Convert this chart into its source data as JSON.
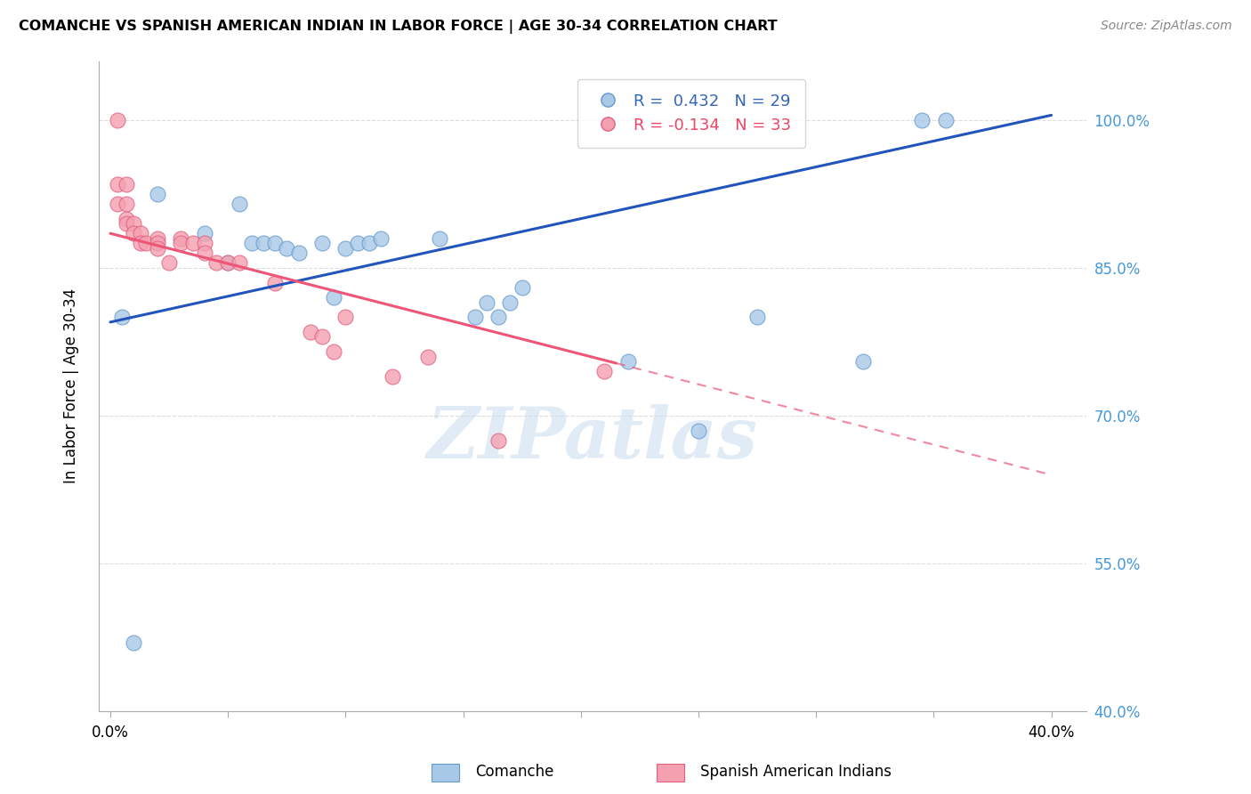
{
  "title": "COMANCHE VS SPANISH AMERICAN INDIAN IN LABOR FORCE | AGE 30-34 CORRELATION CHART",
  "source": "Source: ZipAtlas.com",
  "ylabel": "In Labor Force | Age 30-34",
  "xlim": [
    -0.005,
    0.415
  ],
  "ylim": [
    0.4,
    1.06
  ],
  "yticks": [
    0.4,
    0.55,
    0.7,
    0.85,
    1.0
  ],
  "ytick_labels": [
    "40.0%",
    "55.0%",
    "70.0%",
    "85.0%",
    "100.0%"
  ],
  "xticks": [
    0.0,
    0.05,
    0.1,
    0.15,
    0.2,
    0.25,
    0.3,
    0.35,
    0.4
  ],
  "xtick_labels": [
    "0.0%",
    "",
    "",
    "",
    "",
    "",
    "",
    "",
    "40.0%"
  ],
  "comanche_color": "#A8C8E8",
  "spanish_color": "#F4A0B0",
  "comanche_edge": "#6699CC",
  "spanish_edge": "#E06080",
  "trendline_blue": "#2255BB",
  "trendline_pink": "#EE5577",
  "watermark": "ZIPatlas",
  "legend_R_blue": "R =  0.432",
  "legend_N_blue": "N = 29",
  "legend_R_pink": "R = -0.134",
  "legend_N_pink": "N = 33",
  "comanche_x": [
    0.005,
    0.01,
    0.02,
    0.04,
    0.05,
    0.055,
    0.06,
    0.065,
    0.07,
    0.075,
    0.08,
    0.09,
    0.095,
    0.1,
    0.105,
    0.11,
    0.115,
    0.14,
    0.155,
    0.16,
    0.165,
    0.17,
    0.175,
    0.22,
    0.25,
    0.275,
    0.32,
    0.345,
    0.355
  ],
  "comanche_y": [
    0.8,
    0.47,
    0.925,
    0.885,
    0.855,
    0.915,
    0.875,
    0.875,
    0.875,
    0.87,
    0.865,
    0.875,
    0.82,
    0.87,
    0.875,
    0.875,
    0.88,
    0.88,
    0.8,
    0.815,
    0.8,
    0.815,
    0.83,
    0.755,
    0.685,
    0.8,
    0.755,
    1.0,
    1.0
  ],
  "spanish_x": [
    0.003,
    0.003,
    0.003,
    0.007,
    0.007,
    0.007,
    0.007,
    0.01,
    0.01,
    0.013,
    0.013,
    0.015,
    0.02,
    0.02,
    0.02,
    0.025,
    0.03,
    0.03,
    0.035,
    0.04,
    0.04,
    0.045,
    0.05,
    0.055,
    0.07,
    0.085,
    0.09,
    0.095,
    0.1,
    0.12,
    0.135,
    0.165,
    0.21
  ],
  "spanish_y": [
    1.0,
    0.935,
    0.915,
    0.935,
    0.915,
    0.9,
    0.895,
    0.895,
    0.885,
    0.885,
    0.875,
    0.875,
    0.88,
    0.875,
    0.87,
    0.855,
    0.88,
    0.875,
    0.875,
    0.875,
    0.865,
    0.855,
    0.855,
    0.855,
    0.835,
    0.785,
    0.78,
    0.765,
    0.8,
    0.74,
    0.76,
    0.675,
    0.745
  ],
  "trend_blue_x0": 0.0,
  "trend_blue_x1": 0.4,
  "trend_blue_y0": 0.795,
  "trend_blue_y1": 1.005,
  "trend_pink_x0": 0.0,
  "trend_pink_x1": 0.4,
  "trend_pink_y0": 0.885,
  "trend_pink_y1": 0.64
}
